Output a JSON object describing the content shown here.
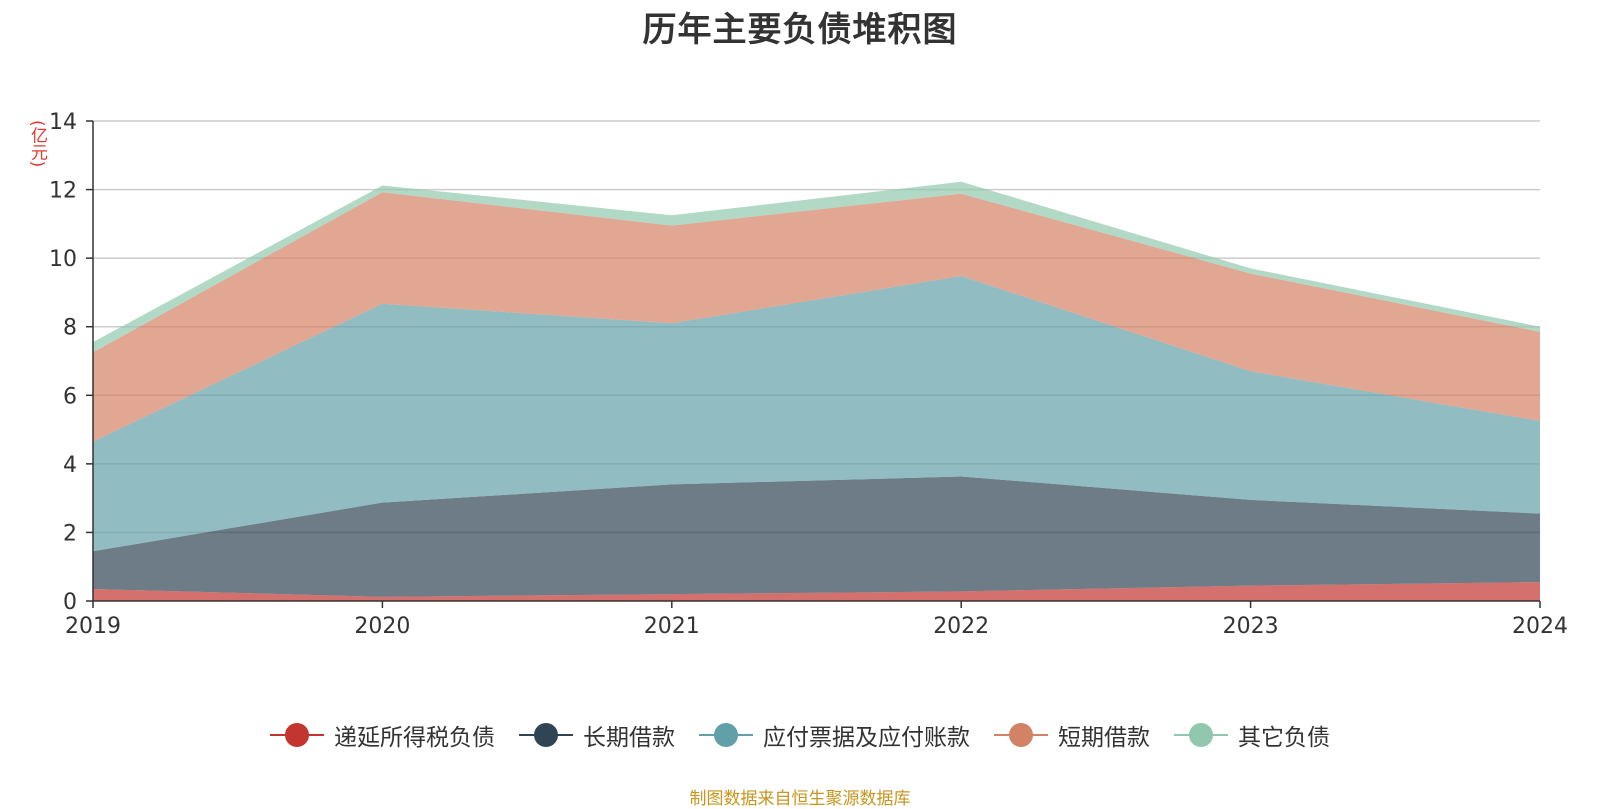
{
  "chart_data": {
    "type": "area",
    "title": "历年主要负债堆积图",
    "ylabel": "(亿元)",
    "xlabel": "",
    "stacked": true,
    "grid": true,
    "legend_position": "bottom",
    "x": [
      "2019",
      "2020",
      "2021",
      "2022",
      "2023",
      "2024"
    ],
    "ylim": [
      0,
      14
    ],
    "yticks": [
      "0",
      "2",
      "4",
      "6",
      "8",
      "10",
      "12",
      "14"
    ],
    "series": [
      {
        "name": "递延所得税负债",
        "color": "#c23531",
        "values": [
          0.35,
          0.12,
          0.2,
          0.28,
          0.45,
          0.55
        ]
      },
      {
        "name": "长期借款",
        "color": "#2f4554",
        "values": [
          1.1,
          2.75,
          3.2,
          3.35,
          2.5,
          2.0
        ]
      },
      {
        "name": "应付票据及应付账款",
        "color": "#61a0a8",
        "values": [
          3.2,
          5.8,
          4.7,
          5.85,
          3.75,
          2.7
        ]
      },
      {
        "name": "短期借款",
        "color": "#d48265",
        "values": [
          2.6,
          3.25,
          2.85,
          2.4,
          2.85,
          2.6
        ]
      },
      {
        "name": "其它负债",
        "color": "#91c7ae",
        "values": [
          0.3,
          0.2,
          0.3,
          0.35,
          0.15,
          0.15
        ]
      }
    ]
  },
  "footer": {
    "source": "制图数据来自恒生聚源数据库"
  }
}
